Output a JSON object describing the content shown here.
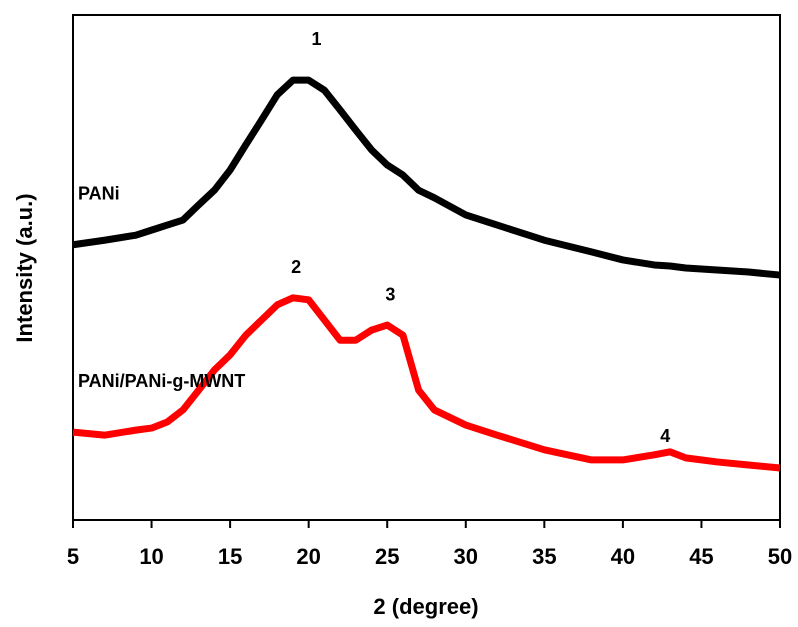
{
  "chart_data": {
    "type": "line",
    "x_label": "2 (degree)",
    "y_label": "Intensity (a.u.)",
    "x": [
      5,
      7,
      9,
      10,
      11,
      12,
      13,
      14,
      15,
      16,
      17,
      18,
      19,
      20,
      21,
      22,
      23,
      24,
      25,
      26,
      27,
      28,
      30,
      32,
      35,
      38,
      40,
      42,
      43,
      44,
      46,
      48,
      50
    ],
    "series": [
      {
        "name": "PANi",
        "color": "#000000",
        "values": [
          54.5,
          55.4,
          56.4,
          57.4,
          58.4,
          59.4,
          62.4,
          65.3,
          69.3,
          74.3,
          79.2,
          84.2,
          87.1,
          87.1,
          85.1,
          81.2,
          77.2,
          73.3,
          70.3,
          68.3,
          65.3,
          63.8,
          60.4,
          58.4,
          55.4,
          53.1,
          51.5,
          50.5,
          50.3,
          49.9,
          49.5,
          49.1,
          48.5
        ]
      },
      {
        "name": "PANi/PANi-g-MWNT",
        "color": "#ff0000",
        "values": [
          17.4,
          16.8,
          17.8,
          18.2,
          19.4,
          21.8,
          25.7,
          29.7,
          32.7,
          36.6,
          39.6,
          42.6,
          44.0,
          43.6,
          39.6,
          35.6,
          35.6,
          37.6,
          38.6,
          36.6,
          25.7,
          21.8,
          18.8,
          16.8,
          13.9,
          11.9,
          11.9,
          12.9,
          13.5,
          12.3,
          11.5,
          10.9,
          10.3
        ]
      }
    ],
    "annotations": [
      {
        "text": "1",
        "x": 20.5,
        "y": 95.0
      },
      {
        "text": "2",
        "x": 19.2,
        "y": 49.9
      },
      {
        "text": "3",
        "x": 25.2,
        "y": 44.4
      },
      {
        "text": "4",
        "x": 42.7,
        "y": 16.4
      }
    ],
    "xlim": [
      5,
      50
    ],
    "xticks": [
      5,
      10,
      15,
      20,
      25,
      30,
      35,
      40,
      45,
      50
    ],
    "ylim": [
      0,
      100
    ]
  }
}
